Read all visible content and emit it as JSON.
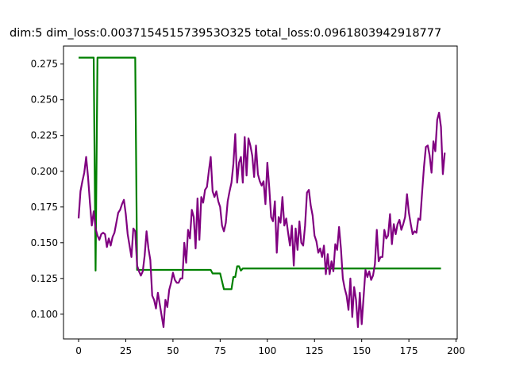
{
  "chart_data": {
    "type": "line",
    "title": "dim:5 dim_loss:0.003715451573953O325 total_loss:0.0961803942918777",
    "xlabel": "",
    "ylabel": "",
    "xlim": [
      -8,
      200.6
    ],
    "ylim": [
      0.0827,
      0.2876
    ],
    "xticks": [
      0,
      25,
      50,
      75,
      100,
      125,
      150,
      175,
      200
    ],
    "yticks": [
      0.1,
      0.125,
      0.15,
      0.175,
      0.2,
      0.225,
      0.25,
      0.275
    ],
    "grid": false,
    "legend": "none",
    "series": [
      {
        "color": "#008000",
        "points": [
          [
            0,
            0.2795
          ],
          [
            8,
            0.2795
          ],
          [
            9,
            0.1305
          ],
          [
            10,
            0.2795
          ],
          [
            30,
            0.2795
          ],
          [
            31,
            0.131
          ],
          [
            70,
            0.131
          ],
          [
            71,
            0.1285
          ],
          [
            75,
            0.1285
          ],
          [
            77,
            0.1175
          ],
          [
            81,
            0.1175
          ],
          [
            82,
            0.126
          ],
          [
            83,
            0.126
          ],
          [
            84,
            0.1335
          ],
          [
            85,
            0.1335
          ],
          [
            86,
            0.1305
          ],
          [
            87,
            0.132
          ],
          [
            192,
            0.132
          ]
        ]
      },
      {
        "color": "#800080",
        "points": [
          [
            0,
            0.167
          ],
          [
            1,
            0.186
          ],
          [
            2,
            0.193
          ],
          [
            3,
            0.199
          ],
          [
            4,
            0.21
          ],
          [
            5,
            0.196
          ],
          [
            6,
            0.178
          ],
          [
            7,
            0.162
          ],
          [
            8,
            0.172
          ],
          [
            9,
            0.16
          ],
          [
            10,
            0.155
          ],
          [
            11,
            0.152
          ],
          [
            12,
            0.156
          ],
          [
            13,
            0.157
          ],
          [
            14,
            0.156
          ],
          [
            15,
            0.147
          ],
          [
            16,
            0.153
          ],
          [
            17,
            0.148
          ],
          [
            18,
            0.154
          ],
          [
            19,
            0.157
          ],
          [
            20,
            0.164
          ],
          [
            21,
            0.171
          ],
          [
            22,
            0.173
          ],
          [
            23,
            0.177
          ],
          [
            24,
            0.18
          ],
          [
            25,
            0.17
          ],
          [
            26,
            0.156
          ],
          [
            27,
            0.148
          ],
          [
            28,
            0.14
          ],
          [
            29,
            0.16
          ],
          [
            30,
            0.158
          ],
          [
            31,
            0.134
          ],
          [
            32,
            0.13
          ],
          [
            33,
            0.127
          ],
          [
            34,
            0.13
          ],
          [
            35,
            0.141
          ],
          [
            36,
            0.158
          ],
          [
            37,
            0.146
          ],
          [
            38,
            0.138
          ],
          [
            39,
            0.113
          ],
          [
            40,
            0.11
          ],
          [
            41,
            0.104
          ],
          [
            42,
            0.115
          ],
          [
            43,
            0.107
          ],
          [
            44,
            0.099
          ],
          [
            45,
            0.091
          ],
          [
            46,
            0.11
          ],
          [
            47,
            0.105
          ],
          [
            48,
            0.117
          ],
          [
            49,
            0.122
          ],
          [
            50,
            0.129
          ],
          [
            51,
            0.124
          ],
          [
            52,
            0.122
          ],
          [
            53,
            0.122
          ],
          [
            54,
            0.125
          ],
          [
            55,
            0.125
          ],
          [
            56,
            0.15
          ],
          [
            57,
            0.136
          ],
          [
            58,
            0.159
          ],
          [
            59,
            0.153
          ],
          [
            60,
            0.173
          ],
          [
            61,
            0.168
          ],
          [
            62,
            0.146
          ],
          [
            63,
            0.181
          ],
          [
            64,
            0.152
          ],
          [
            65,
            0.182
          ],
          [
            66,
            0.178
          ],
          [
            67,
            0.187
          ],
          [
            68,
            0.189
          ],
          [
            69,
            0.2
          ],
          [
            70,
            0.21
          ],
          [
            71,
            0.186
          ],
          [
            72,
            0.182
          ],
          [
            73,
            0.186
          ],
          [
            74,
            0.179
          ],
          [
            75,
            0.175
          ],
          [
            76,
            0.162
          ],
          [
            77,
            0.158
          ],
          [
            78,
            0.164
          ],
          [
            79,
            0.179
          ],
          [
            80,
            0.186
          ],
          [
            81,
            0.192
          ],
          [
            82,
            0.205
          ],
          [
            83,
            0.226
          ],
          [
            84,
            0.192
          ],
          [
            85,
            0.206
          ],
          [
            86,
            0.21
          ],
          [
            87,
            0.192
          ],
          [
            88,
            0.224
          ],
          [
            89,
            0.197
          ],
          [
            90,
            0.223
          ],
          [
            91,
            0.218
          ],
          [
            92,
            0.211
          ],
          [
            93,
            0.196
          ],
          [
            94,
            0.218
          ],
          [
            95,
            0.198
          ],
          [
            96,
            0.193
          ],
          [
            97,
            0.19
          ],
          [
            98,
            0.193
          ],
          [
            99,
            0.177
          ],
          [
            100,
            0.206
          ],
          [
            101,
            0.189
          ],
          [
            102,
            0.168
          ],
          [
            103,
            0.165
          ],
          [
            104,
            0.179
          ],
          [
            105,
            0.143
          ],
          [
            106,
            0.168
          ],
          [
            107,
            0.164
          ],
          [
            108,
            0.182
          ],
          [
            109,
            0.162
          ],
          [
            110,
            0.167
          ],
          [
            111,
            0.157
          ],
          [
            112,
            0.148
          ],
          [
            113,
            0.162
          ],
          [
            114,
            0.134
          ],
          [
            115,
            0.16
          ],
          [
            116,
            0.145
          ],
          [
            117,
            0.165
          ],
          [
            118,
            0.15
          ],
          [
            119,
            0.148
          ],
          [
            120,
            0.162
          ],
          [
            121,
            0.185
          ],
          [
            122,
            0.187
          ],
          [
            123,
            0.176
          ],
          [
            124,
            0.169
          ],
          [
            125,
            0.155
          ],
          [
            126,
            0.151
          ],
          [
            127,
            0.143
          ],
          [
            128,
            0.146
          ],
          [
            129,
            0.14
          ],
          [
            130,
            0.148
          ],
          [
            131,
            0.128
          ],
          [
            132,
            0.142
          ],
          [
            133,
            0.128
          ],
          [
            134,
            0.137
          ],
          [
            135,
            0.13
          ],
          [
            136,
            0.149
          ],
          [
            137,
            0.145
          ],
          [
            138,
            0.161
          ],
          [
            139,
            0.146
          ],
          [
            140,
            0.125
          ],
          [
            141,
            0.118
          ],
          [
            142,
            0.113
          ],
          [
            143,
            0.103
          ],
          [
            144,
            0.125
          ],
          [
            145,
            0.098
          ],
          [
            146,
            0.119
          ],
          [
            147,
            0.11
          ],
          [
            148,
            0.091
          ],
          [
            149,
            0.115
          ],
          [
            150,
            0.093
          ],
          [
            151,
            0.112
          ],
          [
            152,
            0.131
          ],
          [
            153,
            0.126
          ],
          [
            154,
            0.13
          ],
          [
            155,
            0.124
          ],
          [
            156,
            0.127
          ],
          [
            157,
            0.135
          ],
          [
            158,
            0.159
          ],
          [
            159,
            0.137
          ],
          [
            160,
            0.14
          ],
          [
            161,
            0.14
          ],
          [
            162,
            0.159
          ],
          [
            163,
            0.153
          ],
          [
            164,
            0.155
          ],
          [
            165,
            0.17
          ],
          [
            166,
            0.149
          ],
          [
            167,
            0.163
          ],
          [
            168,
            0.156
          ],
          [
            169,
            0.163
          ],
          [
            170,
            0.166
          ],
          [
            171,
            0.159
          ],
          [
            172,
            0.163
          ],
          [
            173,
            0.168
          ],
          [
            174,
            0.184
          ],
          [
            175,
            0.171
          ],
          [
            176,
            0.163
          ],
          [
            177,
            0.156
          ],
          [
            178,
            0.158
          ],
          [
            179,
            0.157
          ],
          [
            180,
            0.167
          ],
          [
            181,
            0.166
          ],
          [
            182,
            0.185
          ],
          [
            183,
            0.203
          ],
          [
            184,
            0.217
          ],
          [
            185,
            0.218
          ],
          [
            186,
            0.211
          ],
          [
            187,
            0.199
          ],
          [
            188,
            0.221
          ],
          [
            189,
            0.214
          ],
          [
            190,
            0.236
          ],
          [
            191,
            0.241
          ],
          [
            192,
            0.231
          ],
          [
            193,
            0.198
          ],
          [
            194,
            0.213
          ]
        ]
      }
    ]
  }
}
